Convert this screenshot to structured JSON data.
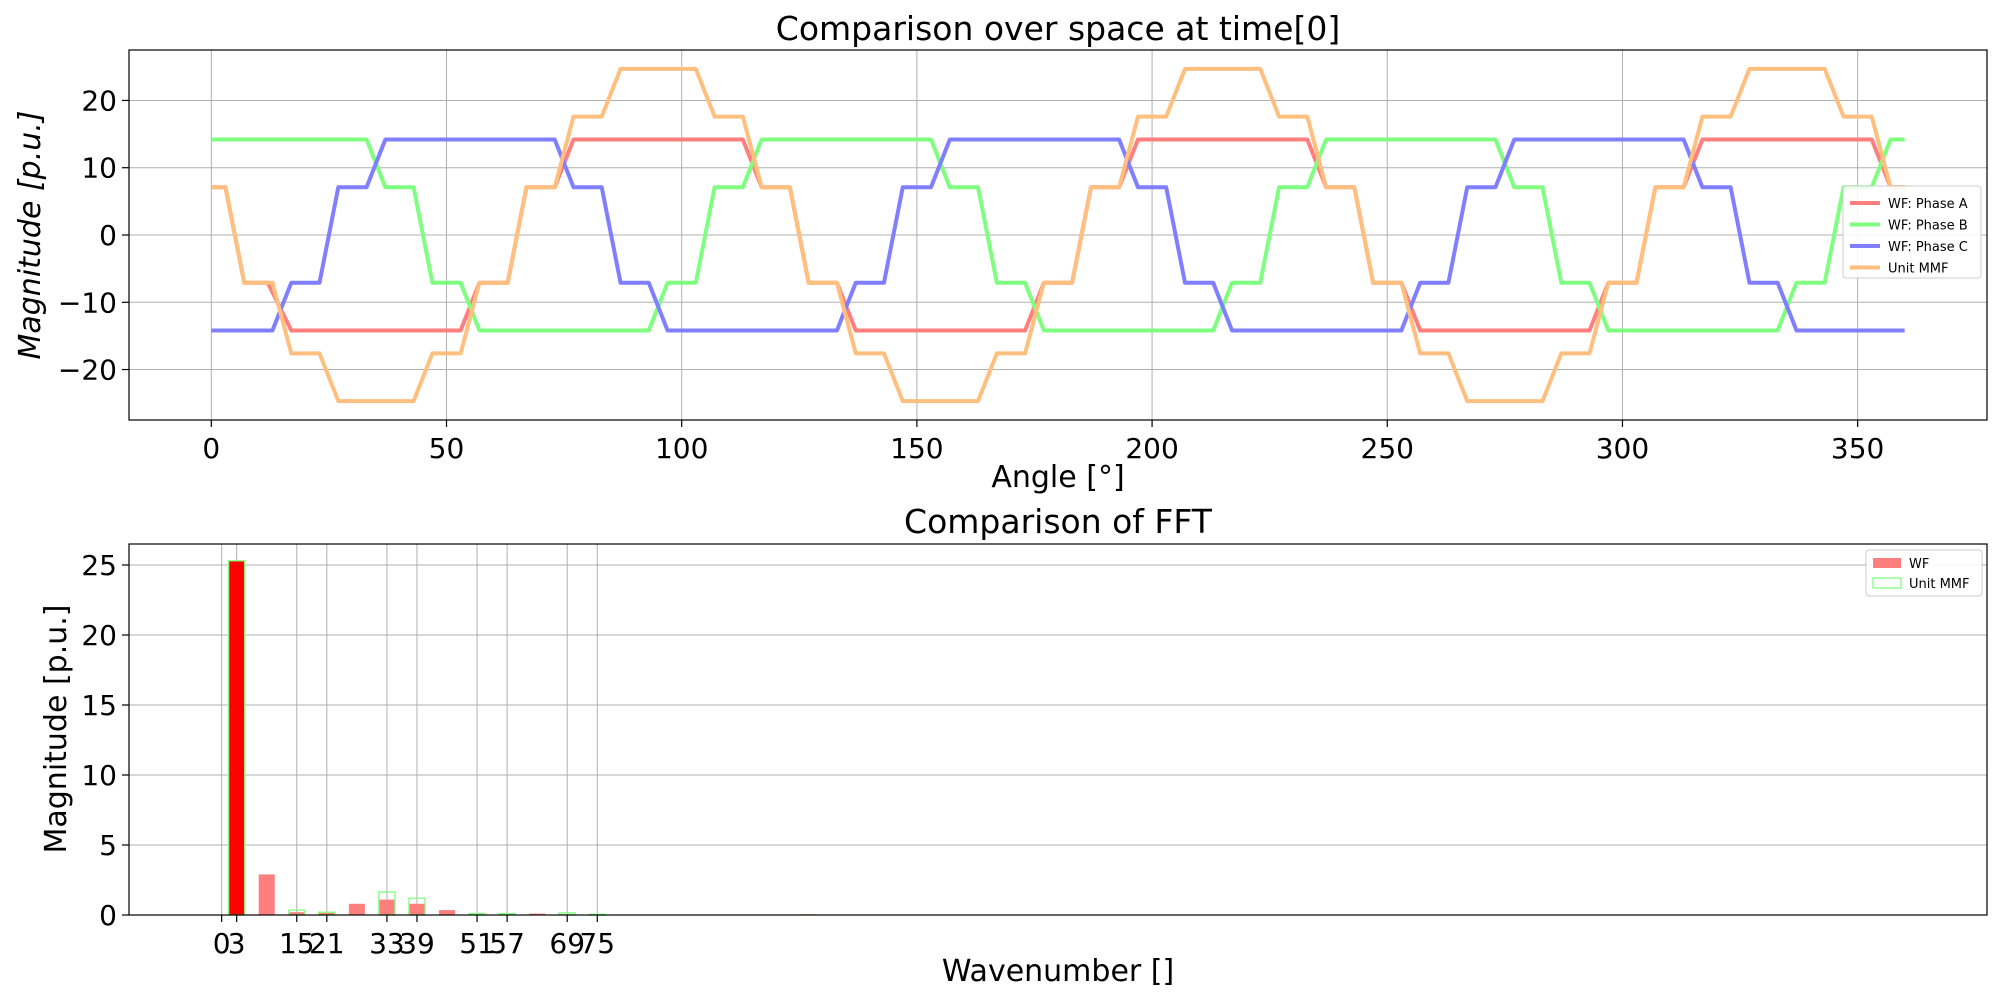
{
  "chart_data": [
    {
      "type": "line",
      "title": "Comparison over space at time[0]",
      "xlabel": "Angle [°]",
      "ylabel": "Magnitude [p.u.]",
      "xlim": [
        -17.5,
        377.5
      ],
      "ylim": [
        -27.5,
        27.5
      ],
      "xticks": [
        0,
        50,
        100,
        150,
        200,
        250,
        300,
        350
      ],
      "xtick_labels": [
        "0",
        "50",
        "100",
        "150",
        "200",
        "250",
        "300",
        "350"
      ],
      "yticks": [
        -20,
        -10,
        0,
        10,
        20
      ],
      "ytick_labels": [
        "−20",
        "−10",
        "0",
        "10",
        "20"
      ],
      "grid": true,
      "legend_position": "right",
      "series": [
        {
          "name": "WF: Phase A",
          "color": "#ff7f7f",
          "x": [
            0,
            3,
            7,
            12,
            17,
            53,
            57,
            63,
            67,
            73,
            77,
            113,
            117,
            123,
            127,
            133,
            137,
            173,
            177,
            183,
            187,
            193,
            197,
            233,
            237,
            243,
            247,
            253,
            257,
            293,
            297,
            303,
            307,
            313,
            317,
            353,
            357,
            360
          ],
          "y": [
            7.1,
            7.1,
            -7.1,
            -7.1,
            -14.2,
            -14.2,
            -7.1,
            -7.1,
            7.1,
            7.1,
            14.2,
            14.2,
            7.1,
            7.1,
            -7.1,
            -7.1,
            -14.2,
            -14.2,
            -7.1,
            -7.1,
            7.1,
            7.1,
            14.2,
            14.2,
            7.1,
            7.1,
            -7.1,
            -7.1,
            -14.2,
            -14.2,
            -7.1,
            -7.1,
            7.1,
            7.1,
            14.2,
            14.2,
            7.1,
            7.1
          ]
        },
        {
          "name": "WF: Phase B",
          "color": "#7fff7f",
          "x": [
            0,
            33,
            37,
            43,
            47,
            53,
            57,
            93,
            97,
            103,
            107,
            113,
            117,
            153,
            157,
            163,
            167,
            173,
            177,
            213,
            217,
            223,
            227,
            233,
            237,
            273,
            277,
            283,
            287,
            293,
            297,
            333,
            337,
            343,
            347,
            353,
            357,
            360
          ],
          "y": [
            14.2,
            14.2,
            7.1,
            7.1,
            -7.1,
            -7.1,
            -14.2,
            -14.2,
            -7.1,
            -7.1,
            7.1,
            7.1,
            14.2,
            14.2,
            7.1,
            7.1,
            -7.1,
            -7.1,
            -14.2,
            -14.2,
            -7.1,
            -7.1,
            7.1,
            7.1,
            14.2,
            14.2,
            7.1,
            7.1,
            -7.1,
            -7.1,
            -14.2,
            -14.2,
            -7.1,
            -7.1,
            7.1,
            7.1,
            14.2,
            14.2
          ]
        },
        {
          "name": "WF: Phase C",
          "color": "#7f7fff",
          "x": [
            0,
            13,
            17,
            23,
            27,
            33,
            37,
            73,
            77,
            83,
            87,
            93,
            97,
            133,
            137,
            143,
            147,
            153,
            157,
            193,
            197,
            203,
            207,
            213,
            217,
            253,
            257,
            263,
            267,
            273,
            277,
            313,
            317,
            323,
            327,
            333,
            337,
            360
          ],
          "y": [
            -14.2,
            -14.2,
            -7.1,
            -7.1,
            7.1,
            7.1,
            14.2,
            14.2,
            7.1,
            7.1,
            -7.1,
            -7.1,
            -14.2,
            -14.2,
            -7.1,
            -7.1,
            7.1,
            7.1,
            14.2,
            14.2,
            7.1,
            7.1,
            -7.1,
            -7.1,
            -14.2,
            -14.2,
            -7.1,
            -7.1,
            7.1,
            7.1,
            14.2,
            14.2,
            7.1,
            7.1,
            -7.1,
            -7.1,
            -14.2,
            -14.2
          ]
        },
        {
          "name": "Unit MMF",
          "color": "#ffbf7f",
          "x": [
            0,
            3,
            7,
            13,
            17,
            23,
            27,
            43,
            47,
            53,
            57,
            63,
            67,
            73,
            77,
            83,
            87,
            103,
            107,
            113,
            117,
            123,
            127,
            133,
            137,
            143,
            147,
            163,
            167,
            173,
            177,
            183,
            187,
            193,
            197,
            203,
            207,
            223,
            227,
            233,
            237,
            243,
            247,
            253,
            257,
            263,
            267,
            283,
            287,
            293,
            297,
            303,
            307,
            313,
            317,
            323,
            327,
            343,
            347,
            353,
            357,
            360
          ],
          "y": [
            7.1,
            7.1,
            -7.1,
            -7.1,
            -17.6,
            -17.6,
            -24.7,
            -24.7,
            -17.6,
            -17.6,
            -7.1,
            -7.1,
            7.1,
            7.1,
            17.6,
            17.6,
            24.7,
            24.7,
            17.6,
            17.6,
            7.1,
            7.1,
            -7.1,
            -7.1,
            -17.6,
            -17.6,
            -24.7,
            -24.7,
            -17.6,
            -17.6,
            -7.1,
            -7.1,
            7.1,
            7.1,
            17.6,
            17.6,
            24.7,
            24.7,
            17.6,
            17.6,
            7.1,
            7.1,
            -7.1,
            -7.1,
            -17.6,
            -17.6,
            -24.7,
            -24.7,
            -17.6,
            -17.6,
            -7.1,
            -7.1,
            7.1,
            7.1,
            17.6,
            17.6,
            24.7,
            24.7,
            17.6,
            17.6,
            7.1,
            7.1
          ]
        }
      ]
    },
    {
      "type": "bar",
      "title": "Comparison of FFT",
      "xlabel": "Wavenumber []",
      "ylabel": "Magnitude [p.u.]",
      "xlim": [
        -18.5,
        352.5
      ],
      "ylim": [
        0,
        26.5
      ],
      "xticks": [
        0,
        3,
        15,
        21,
        33,
        39,
        51,
        57,
        69,
        75
      ],
      "xtick_labels": [
        "0",
        "3",
        "15",
        "21",
        "33",
        "39",
        "51",
        "57",
        "69",
        "75"
      ],
      "yticks": [
        0,
        5,
        10,
        15,
        20,
        25
      ],
      "ytick_labels": [
        "0",
        "5",
        "10",
        "15",
        "20",
        "25"
      ],
      "grid": true,
      "legend_position": "top-right",
      "series": [
        {
          "name": "WF",
          "color": "#ff7f7f",
          "highlight_color": "#ff0000",
          "x": [
            3,
            9,
            15,
            21,
            27,
            33,
            39,
            45,
            51,
            57,
            63,
            69,
            75,
            81,
            117
          ],
          "values": [
            25.3,
            2.9,
            0.2,
            0.15,
            0.8,
            1.1,
            0.8,
            0.35,
            0.02,
            0.02,
            0.1,
            0.05,
            0.02,
            0.02,
            0.05
          ]
        },
        {
          "name": "Unit MMF",
          "color": "#7fff7f",
          "x": [
            3,
            15,
            21,
            33,
            39,
            51,
            57,
            69,
            75
          ],
          "values": [
            25.3,
            0.35,
            0.2,
            1.65,
            1.2,
            0.1,
            0.1,
            0.15,
            0.05
          ]
        }
      ]
    }
  ]
}
